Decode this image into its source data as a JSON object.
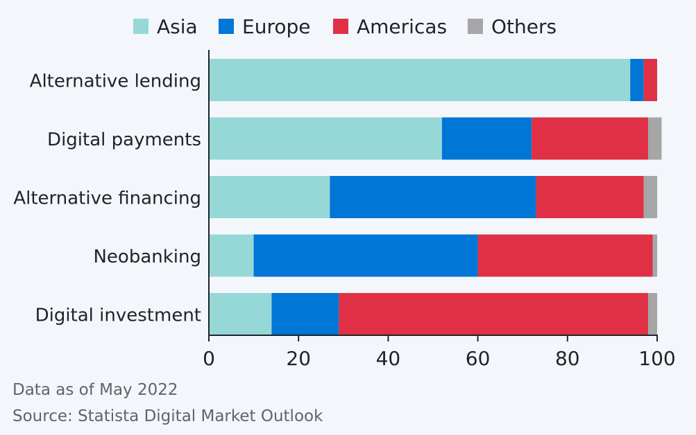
{
  "chart_data": {
    "type": "bar",
    "orientation": "horizontal",
    "stacked": true,
    "categories": [
      "Alternative lending",
      "Digital payments",
      "Alternative financing",
      "Neobanking",
      "Digital investment"
    ],
    "series": [
      {
        "name": "Asia",
        "color": "#95d8d7",
        "values": [
          94,
          52,
          27,
          10,
          14
        ]
      },
      {
        "name": "Europe",
        "color": "#0076d6",
        "values": [
          3,
          20,
          46,
          50,
          15
        ]
      },
      {
        "name": "Americas",
        "color": "#e03045",
        "values": [
          3,
          26,
          24,
          39,
          69
        ]
      },
      {
        "name": "Others",
        "color": "#a6a6a6",
        "values": [
          0,
          3,
          3,
          1,
          2
        ]
      }
    ],
    "xlim": [
      0,
      100
    ],
    "xticks": [
      0,
      20,
      40,
      60,
      80,
      100
    ],
    "legend_position": "top",
    "grid": false
  },
  "footer": {
    "note": "Data as of May 2022",
    "source": "Source: Statista Digital Market Outlook"
  }
}
